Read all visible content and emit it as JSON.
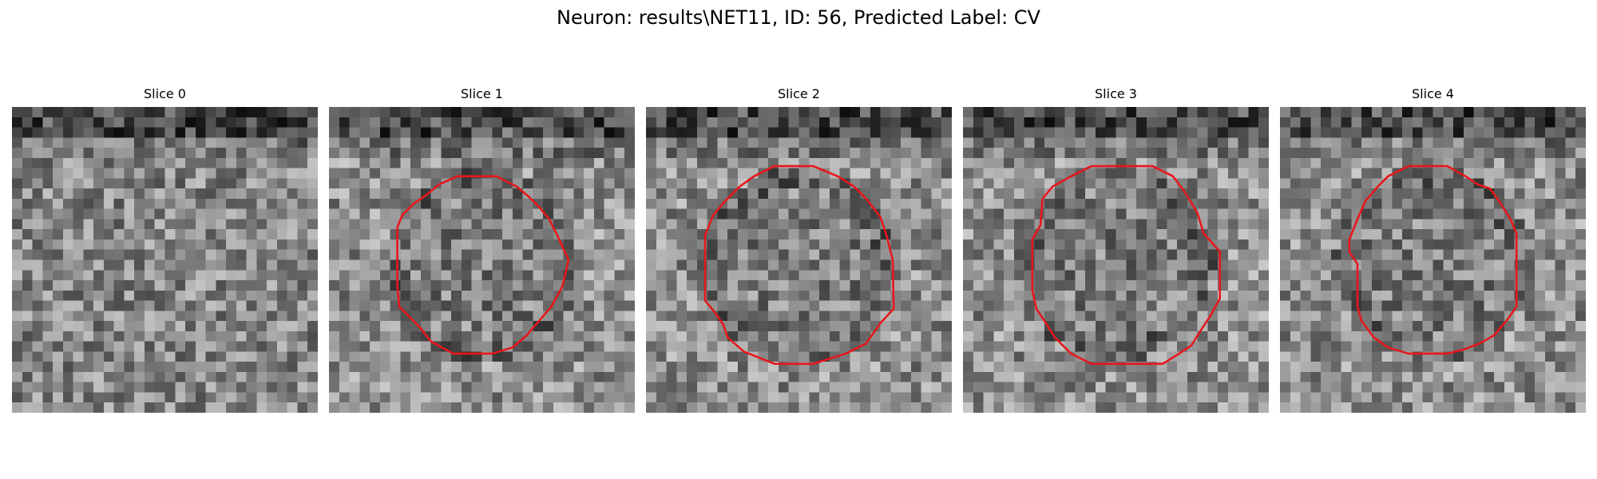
{
  "figure": {
    "title": "Neuron: results\\NET11, ID: 56, Predicted Label: CV"
  },
  "contour_color": "#e8161b",
  "panels": [
    {
      "title": "Slice 0",
      "has_contour": false
    },
    {
      "title": "Slice 1",
      "has_contour": true
    },
    {
      "title": "Slice 2",
      "has_contour": true
    },
    {
      "title": "Slice 3",
      "has_contour": true
    },
    {
      "title": "Slice 4",
      "has_contour": true
    }
  ]
}
